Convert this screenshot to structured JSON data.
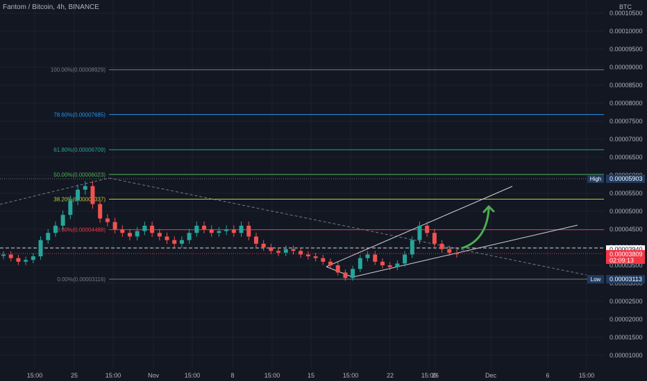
{
  "header": {
    "title": "Fantom / Bitcoin, 4h, BINANCE"
  },
  "chart_data": {
    "type": "candlestick",
    "currency_label": "BTC",
    "y_ticks": [
      "0.00010500",
      "0.00010000",
      "0.00009500",
      "0.00009000",
      "0.00008500",
      "0.00008000",
      "0.00007500",
      "0.00007000",
      "0.00006500",
      "0.00006000",
      "0.00005500",
      "0.00005000",
      "0.00004500",
      "0.00004000",
      "0.00003500",
      "0.00003000",
      "0.00002500",
      "0.00002000",
      "0.00001500",
      "0.00001000"
    ],
    "ylim": [
      8.5e-06,
      0.000107
    ],
    "x_ticks": [
      "15:00",
      "25",
      "15:00",
      "Nov",
      "15:00",
      "8",
      "15:00",
      "15",
      "15:00",
      "22",
      "15:00",
      "26",
      "Dec",
      "6",
      "15:00"
    ],
    "fib_levels": [
      {
        "label": "100.00%(0.00008929)",
        "value": 8.929e-05,
        "color": "#787b86"
      },
      {
        "label": "78.60%(0.00007685)",
        "value": 7.685e-05,
        "color": "#2196f3"
      },
      {
        "label": "61.80%(0.00006709)",
        "value": 6.709e-05,
        "color": "#26a69a"
      },
      {
        "label": "50.00%(0.00006023)",
        "value": 6.023e-05,
        "color": "#4caf50"
      },
      {
        "label": "38.20%(0.00005337)",
        "value": 5.337e-05,
        "color": "#c0ca33"
      },
      {
        "label": "23.60%(0.00004488)",
        "value": 4.488e-05,
        "color": "#f23645"
      },
      {
        "label": "0.00%(0.00003116)",
        "value": 3.116e-05,
        "color": "#787b86"
      }
    ],
    "price_markers": [
      {
        "tag": "High",
        "value_label": "0.00005903",
        "value": 5.903e-05
      },
      {
        "tag": "",
        "value_label": "0.00003940",
        "value": 3.94e-05
      },
      {
        "tag": "",
        "value_label": "0.00003809",
        "value": 3.809e-05,
        "countdown": "02:09:13"
      },
      {
        "tag": "Low",
        "value_label": "0.00003113",
        "value": 3.113e-05
      }
    ],
    "close_series": [
      3.8e-05,
      3.7e-05,
      3.6e-05,
      3.65e-05,
      3.75e-05,
      4.2e-05,
      4.4e-05,
      4.6e-05,
      4.9e-05,
      5.3e-05,
      5.6e-05,
      5.7e-05,
      5.2e-05,
      4.8e-05,
      4.7e-05,
      4.5e-05,
      4.4e-05,
      4.3e-05,
      4.45e-05,
      4.6e-05,
      4.4e-05,
      4.3e-05,
      4.2e-05,
      4.1e-05,
      4.2e-05,
      4.4e-05,
      4.6e-05,
      4.5e-05,
      4.4e-05,
      4.45e-05,
      4.5e-05,
      4.4e-05,
      4.6e-05,
      4.3e-05,
      4.1e-05,
      4e-05,
      3.9e-05,
      3.85e-05,
      3.95e-05,
      3.9e-05,
      3.8e-05,
      3.75e-05,
      3.7e-05,
      3.6e-05,
      3.5e-05,
      3.3e-05,
      3.15e-05,
      3.4e-05,
      3.7e-05,
      3.8e-05,
      3.6e-05,
      3.5e-05,
      3.45e-05,
      3.55e-05,
      3.8e-05,
      4.2e-05,
      4.6e-05,
      4.4e-05,
      4.1e-05,
      3.95e-05,
      3.85e-05,
      3.81e-05
    ]
  }
}
